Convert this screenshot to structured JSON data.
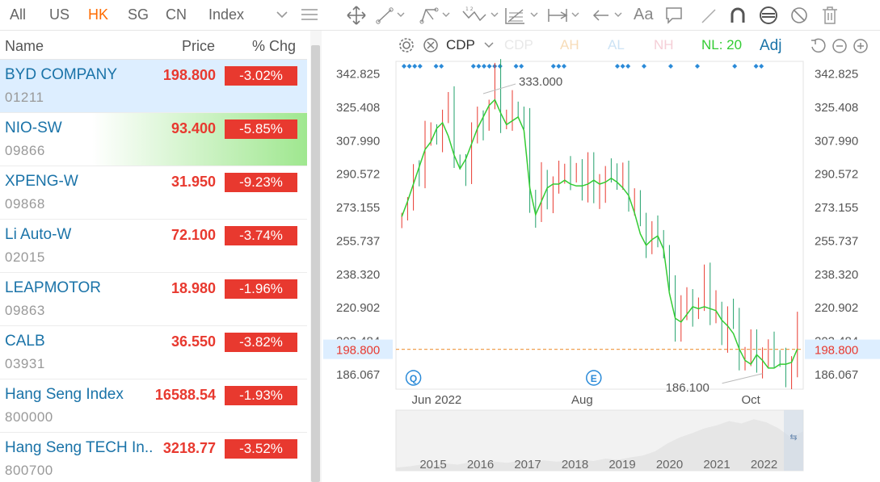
{
  "market_tabs": [
    {
      "label": "All",
      "active": false
    },
    {
      "label": "US",
      "active": false
    },
    {
      "label": "HK",
      "active": true
    },
    {
      "label": "SG",
      "active": false
    },
    {
      "label": "CN",
      "active": false
    },
    {
      "label": "Index",
      "active": false
    }
  ],
  "columns": {
    "name": "Name",
    "price": "Price",
    "change": "% Chg"
  },
  "watchlist": [
    {
      "name": "BYD COMPANY",
      "code": "01211",
      "price": "198.800",
      "change": "-3.02%",
      "state": "selected"
    },
    {
      "name": "NIO-SW",
      "code": "09866",
      "price": "93.400",
      "change": "-5.85%",
      "state": "flash"
    },
    {
      "name": "XPENG-W",
      "code": "09868",
      "price": "31.950",
      "change": "-9.23%",
      "state": ""
    },
    {
      "name": "Li Auto-W",
      "code": "02015",
      "price": "72.100",
      "change": "-3.74%",
      "state": ""
    },
    {
      "name": "LEAPMOTOR",
      "code": "09863",
      "price": "18.980",
      "change": "-1.96%",
      "state": ""
    },
    {
      "name": "CALB",
      "code": "03931",
      "price": "36.550",
      "change": "-3.82%",
      "state": ""
    },
    {
      "name": "Hang Seng Index",
      "code": "800000",
      "price": "16588.54",
      "change": "-1.93%",
      "state": ""
    },
    {
      "name": "Hang Seng TECH In...",
      "code": "800700",
      "price": "3218.77",
      "change": "-3.52%",
      "state": ""
    }
  ],
  "toolbar": {
    "text_tool": "Aa"
  },
  "chart_header": {
    "indicators": [
      {
        "label": "CDP",
        "color": "#333333"
      },
      {
        "label": "CDP",
        "color": "#e8e8e8"
      },
      {
        "label": "AH",
        "color": "#f7dcb8"
      },
      {
        "label": "AL",
        "color": "#cde3f5"
      },
      {
        "label": "NH",
        "color": "#f5cfd7"
      },
      {
        "label": "NL: 20",
        "color": "#33cc33"
      }
    ],
    "adj": "Adj"
  },
  "colors": {
    "up": "#e8392f",
    "down": "#22a06b",
    "ma": "#33cc33",
    "accent": "#ff6b00",
    "link": "#1a73a8",
    "price_line": "#f0a050"
  },
  "chart_data": {
    "type": "candlestick",
    "symbol": "BYD COMPANY",
    "y_ticks": [
      "342.825",
      "325.408",
      "307.990",
      "290.572",
      "273.155",
      "255.737",
      "238.320",
      "220.902",
      "203.484",
      "186.067"
    ],
    "ylim": [
      178.0,
      349.0
    ],
    "x_ticks": [
      "Jun 2022",
      "Aug",
      "Oct"
    ],
    "last_price": "198.800",
    "annotations": {
      "high": "333.000",
      "low": "186.100"
    },
    "event_markers": [
      "Q",
      "E"
    ],
    "ma_label": "20",
    "overview_years": [
      "2015",
      "2016",
      "2017",
      "2018",
      "2019",
      "2020",
      "2021",
      "2022"
    ],
    "ma": [
      268,
      276,
      285,
      294,
      303,
      307,
      314,
      317,
      310,
      300,
      293,
      298,
      306,
      314,
      320,
      326,
      329,
      322,
      316,
      318,
      320,
      313,
      283,
      269,
      276,
      283,
      285,
      285,
      287,
      285,
      284,
      284,
      285,
      287,
      285,
      286,
      288,
      286,
      283,
      279,
      270,
      259,
      253,
      256,
      258,
      251,
      228,
      215,
      213,
      217,
      221,
      220,
      221,
      220,
      219,
      214,
      211,
      207,
      199,
      193,
      191,
      196,
      193,
      189,
      189,
      191,
      191,
      192,
      199
    ]
  }
}
